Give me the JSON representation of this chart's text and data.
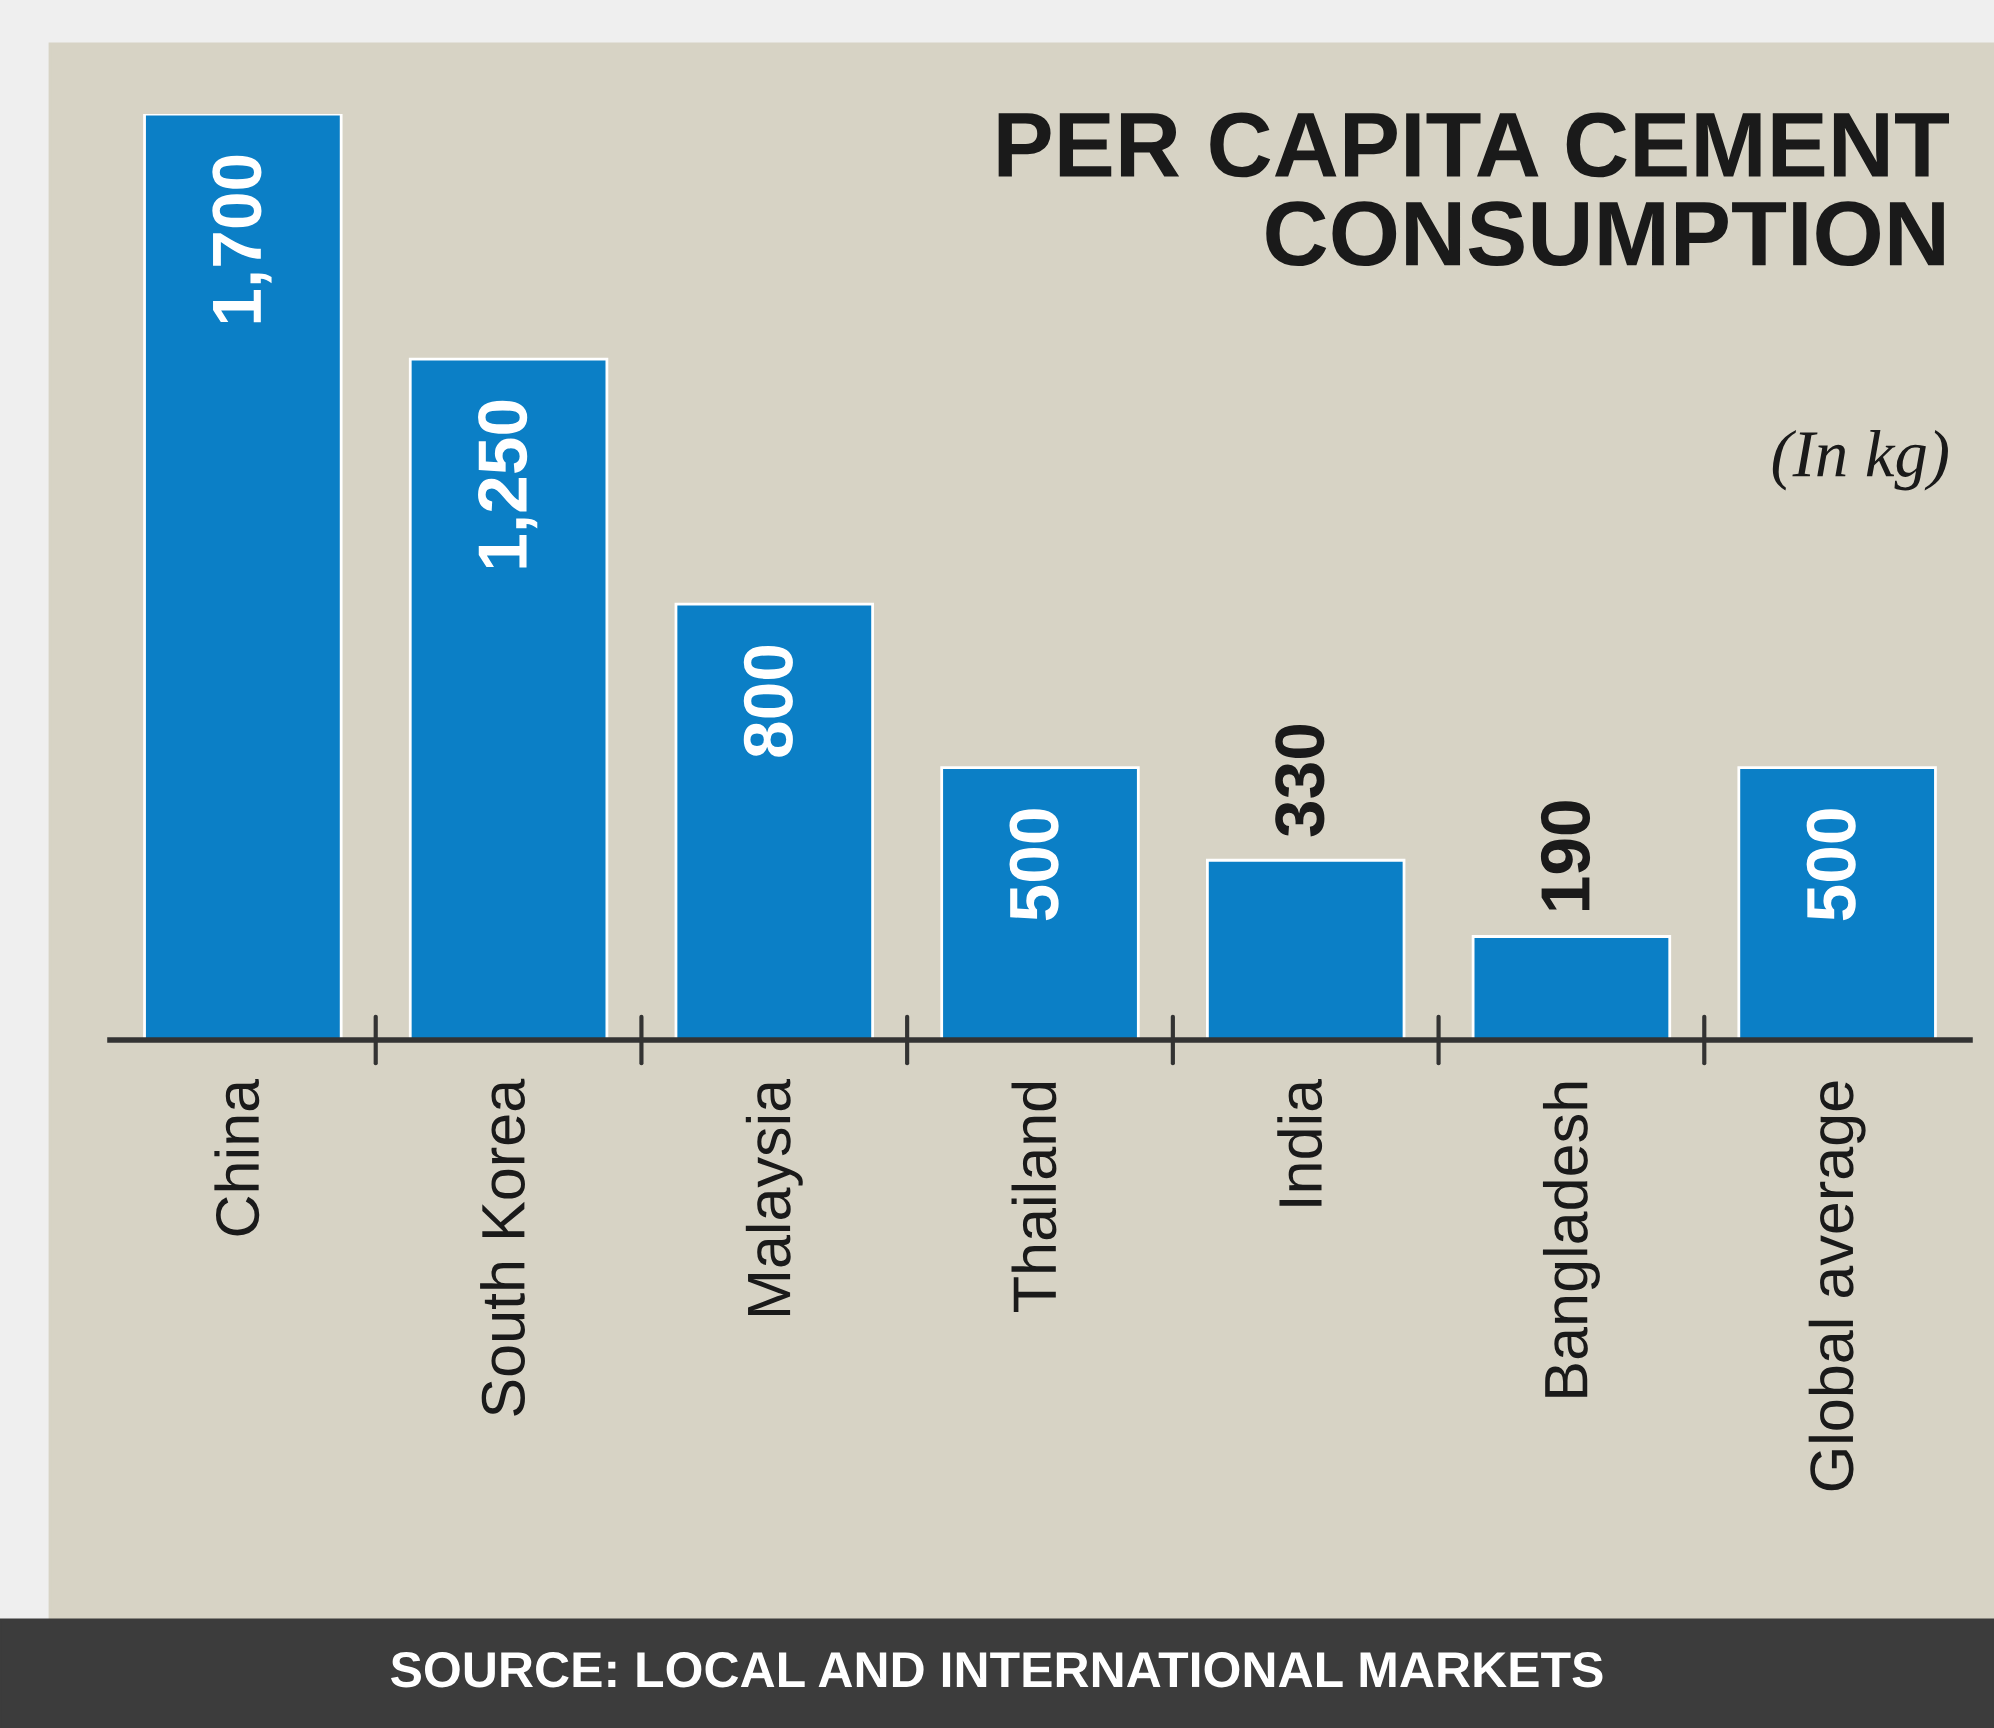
{
  "chart_data": {
    "type": "bar",
    "title": "PER CAPITA CEMENT\nCONSUMPTION",
    "subtitle": "(In kg)",
    "categories": [
      "China",
      "South Korea",
      "Malaysia",
      "Thailand",
      "India",
      "Bangladesh",
      "Global average"
    ],
    "values": [
      1700,
      1250,
      800,
      500,
      330,
      190,
      500
    ],
    "color": "#0b7fc6",
    "data_labels": true,
    "tick_labels": "x",
    "grid": false,
    "value_labels": [
      "1,700",
      "1,250",
      "800",
      "500",
      "330",
      "190",
      "500"
    ],
    "annotations": [
      "SOURCE: LOCAL AND INTERNATIONAL MARKETS"
    ]
  }
}
